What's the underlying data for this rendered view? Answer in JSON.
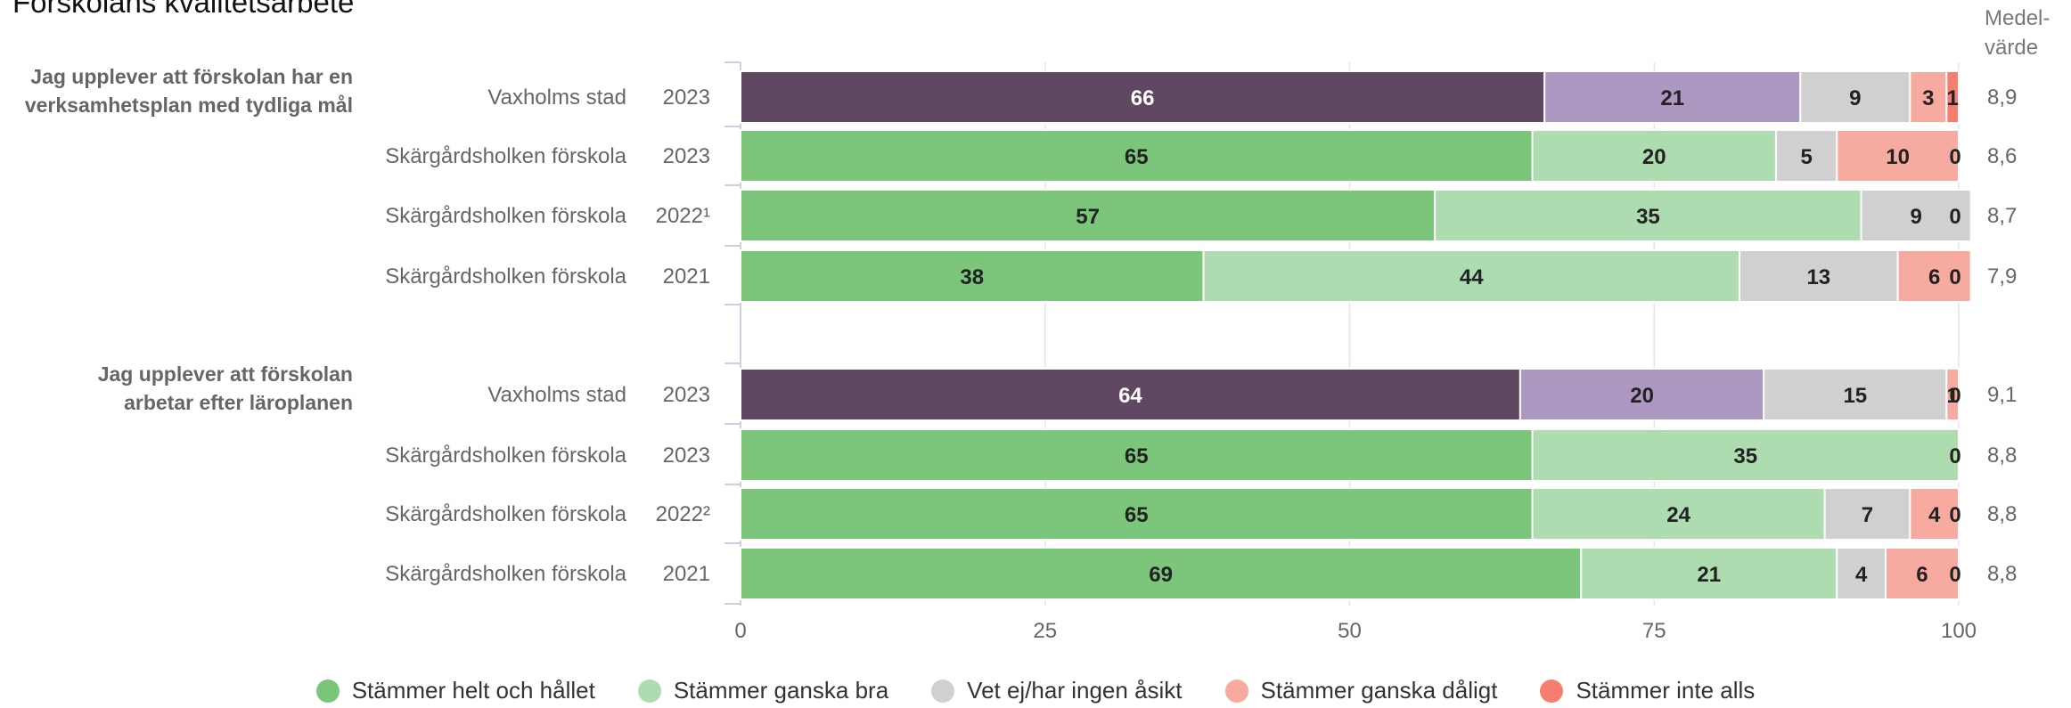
{
  "chart_data": {
    "type": "bar",
    "orientation": "horizontal",
    "stacked": true,
    "title": "Förskolans kvalitetsarbete",
    "mean_header": "Medel-\nvärde",
    "xlim": [
      0,
      100
    ],
    "x_ticks": [
      "0",
      "25",
      "50",
      "75",
      "100"
    ],
    "legend_position": "bottom",
    "grid": true,
    "series": [
      {
        "name": "Stämmer helt och hållet",
        "color": "#7bc67b"
      },
      {
        "name": "Stämmer ganska bra",
        "color": "#acdcb0"
      },
      {
        "name": "Vet ej/har ingen åsikt",
        "color": "#d0d0d0"
      },
      {
        "name": "Stämmer ganska dåligt",
        "color": "#f7aba0"
      },
      {
        "name": "Stämmer inte alls",
        "color": "#f67e6e"
      }
    ],
    "highlight_colors": [
      "#604762",
      "#ac98c0",
      "#d0d0d0",
      "#f7aba0",
      "#f67e6e"
    ],
    "groups": [
      {
        "question": "Jag upplever att förskolan har en verksamhetsplan med tydliga mål",
        "question_lines": [
          "Jag upplever att förskolan har en",
          "verksamhetsplan med tydliga mål"
        ],
        "rows": [
          {
            "label": "Vaxholms stad",
            "year": "2023",
            "highlight": true,
            "values": [
              66,
              21,
              9,
              3,
              1
            ],
            "mean": "8,9"
          },
          {
            "label": "Skärgårdsholken förskola",
            "year": "2023",
            "values": [
              65,
              20,
              5,
              10,
              0
            ],
            "mean": "8,6"
          },
          {
            "label": "Skärgårdsholken förskola",
            "year": "2022¹",
            "values": [
              57,
              35,
              9,
              0,
              0
            ],
            "mean": "8,7"
          },
          {
            "label": "Skärgårdsholken förskola",
            "year": "2021",
            "values": [
              38,
              44,
              13,
              6,
              0
            ],
            "mean": "7,9"
          }
        ]
      },
      {
        "question": "Jag upplever att förskolan arbetar efter läroplanen",
        "question_lines": [
          "Jag upplever att förskolan",
          "arbetar efter läroplanen"
        ],
        "rows": [
          {
            "label": "Vaxholms stad",
            "year": "2023",
            "highlight": true,
            "values": [
              64,
              20,
              15,
              1,
              0
            ],
            "mean": "9,1"
          },
          {
            "label": "Skärgårdsholken förskola",
            "year": "2023",
            "values": [
              65,
              35,
              0,
              0,
              0
            ],
            "mean": "8,8"
          },
          {
            "label": "Skärgårdsholken förskola",
            "year": "2022²",
            "values": [
              65,
              24,
              7,
              4,
              0
            ],
            "mean": "8,8"
          },
          {
            "label": "Skärgårdsholken förskola",
            "year": "2021",
            "values": [
              69,
              21,
              4,
              6,
              0
            ],
            "mean": "8,8"
          }
        ]
      }
    ]
  }
}
